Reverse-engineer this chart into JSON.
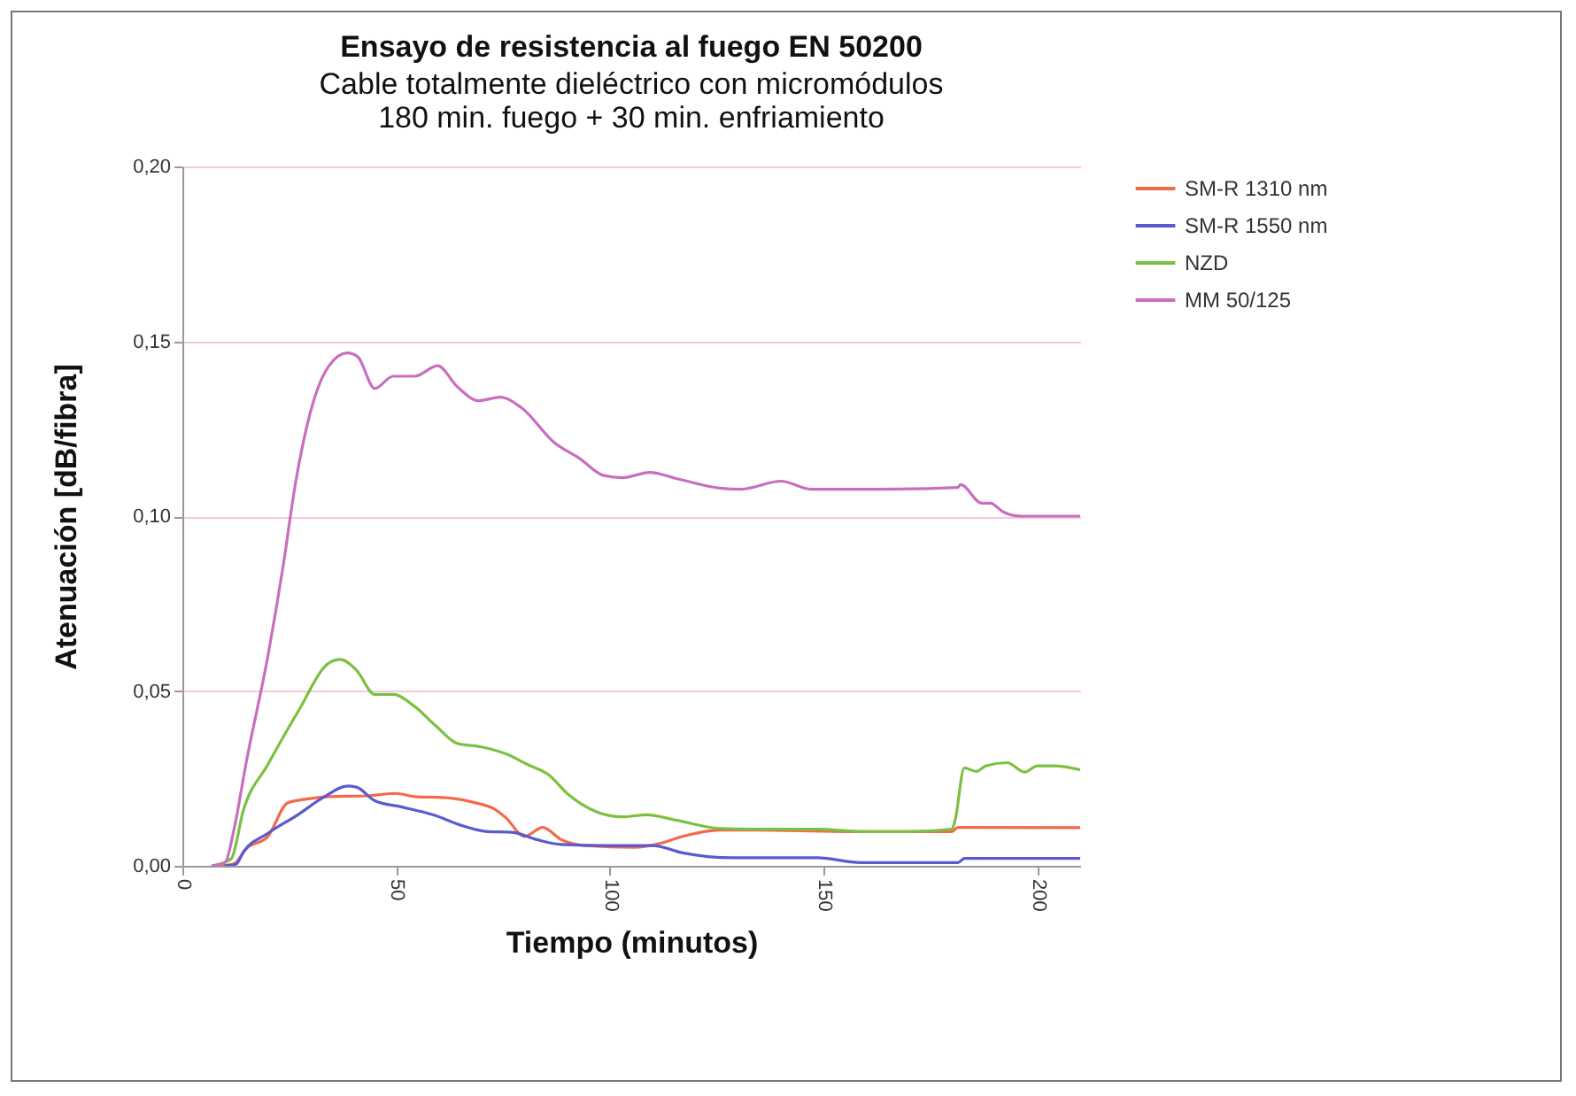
{
  "chart_data": {
    "type": "line",
    "title": "Ensayo de resistencia al fuego EN 50200",
    "subtitle": "Cable totalmente dieléctrico con micromódulos\n180 min. fuego + 30 min. enfriamiento",
    "xlabel": "Tiempo (minutos)",
    "ylabel": "Atenuación [dB/fibra]",
    "series": [
      {
        "name": "SM-R 1310 nm",
        "color": "#f4694a",
        "x": [
          8.6,
          12,
          15,
          20,
          24.6,
          28.6,
          34.3,
          42.9,
          50,
          54.3,
          61.4,
          68.6,
          72.9,
          75.7,
          80,
          84.3,
          88.6,
          94.3,
          105.7,
          111.4,
          117,
          125.7,
          134,
          155.7,
          180,
          181.4,
          210
        ],
        "values": [
          0,
          0.0005,
          0.005,
          0.0084,
          0.018,
          0.019,
          0.0198,
          0.02,
          0.0207,
          0.0198,
          0.0195,
          0.018,
          0.0163,
          0.0137,
          0.0084,
          0.011,
          0.0075,
          0.0058,
          0.0053,
          0.0063,
          0.0084,
          0.0102,
          0.0102,
          0.0098,
          0.0098,
          0.011,
          0.0109
        ]
      },
      {
        "name": "SM-R 1550 nm",
        "color": "#5a5ad0",
        "x": [
          10,
          12.6,
          14.3,
          20,
          27,
          32.9,
          38.6,
          40.7,
          45,
          51.4,
          58.6,
          65.7,
          71.4,
          77.1,
          82.9,
          88.6,
          100,
          110,
          117,
          128.6,
          148.6,
          158.6,
          181.4,
          182.9,
          210
        ],
        "values": [
          0,
          0.0005,
          0.004,
          0.0093,
          0.0146,
          0.0195,
          0.0228,
          0.0225,
          0.0186,
          0.0168,
          0.0146,
          0.0114,
          0.0098,
          0.0096,
          0.0075,
          0.0061,
          0.0058,
          0.0058,
          0.0037,
          0.0023,
          0.0023,
          0.0009,
          0.0009,
          0.0021,
          0.0021
        ]
      },
      {
        "name": "NZD",
        "color": "#7ac142",
        "x": [
          7,
          11.4,
          14.3,
          20,
          27,
          34.3,
          37,
          40.7,
          45,
          49.3,
          54.3,
          59.3,
          64.3,
          70,
          75.7,
          80.7,
          85.7,
          90,
          97,
          102.9,
          108.6,
          115.7,
          125.7,
          134,
          148.6,
          158.6,
          170,
          180,
          180.7,
          182.9,
          185.7,
          188,
          192.9,
          197,
          200,
          204,
          210
        ],
        "values": [
          0,
          0.002,
          0.016,
          0.029,
          0.044,
          0.058,
          0.059,
          0.056,
          0.049,
          0.049,
          0.0456,
          0.04,
          0.035,
          0.034,
          0.032,
          0.029,
          0.026,
          0.0207,
          0.0154,
          0.014,
          0.0146,
          0.013,
          0.0107,
          0.0105,
          0.0105,
          0.0098,
          0.0098,
          0.0105,
          0.0128,
          0.028,
          0.027,
          0.0286,
          0.0295,
          0.0268,
          0.0286,
          0.0286,
          0.0275
        ]
      },
      {
        "name": "MM 50/125",
        "color": "#c86ec0",
        "x": [
          7,
          10,
          12,
          15,
          20,
          23.6,
          26.4,
          30,
          34.3,
          38.6,
          41,
          45,
          49.3,
          54.3,
          59.7,
          64.3,
          69.3,
          74.3,
          79.3,
          87,
          92.9,
          98.6,
          102.9,
          109.3,
          115.7,
          125.7,
          130.7,
          140,
          147,
          163,
          181.4,
          182,
          187,
          189,
          192,
          196,
          210
        ],
        "values": [
          0,
          0.001,
          0.01,
          0.03,
          0.06,
          0.086,
          0.109,
          0.13,
          0.143,
          0.1467,
          0.1456,
          0.1365,
          0.14,
          0.14,
          0.143,
          0.137,
          0.133,
          0.134,
          0.131,
          0.121,
          0.1165,
          0.1116,
          0.111,
          0.1125,
          0.1107,
          0.108,
          0.1077,
          0.11,
          0.1077,
          0.1077,
          0.1082,
          0.109,
          0.1037,
          0.1037,
          0.1012,
          0.1,
          0.1
        ]
      }
    ],
    "xlim": [
      0,
      210
    ],
    "xticks": [
      0,
      50,
      100,
      150,
      200
    ],
    "ylim": [
      0,
      0.2
    ],
    "yticks": [
      {
        "value": 0,
        "label": "0,00"
      },
      {
        "value": 0.05,
        "label": "0,05"
      },
      {
        "value": 0.1,
        "label": "0,10"
      },
      {
        "value": 0.15,
        "label": "0,15"
      },
      {
        "value": 0.2,
        "label": "0,20"
      }
    ],
    "grid": "y",
    "legend": "right",
    "marker": "none",
    "line_style": "solid"
  }
}
